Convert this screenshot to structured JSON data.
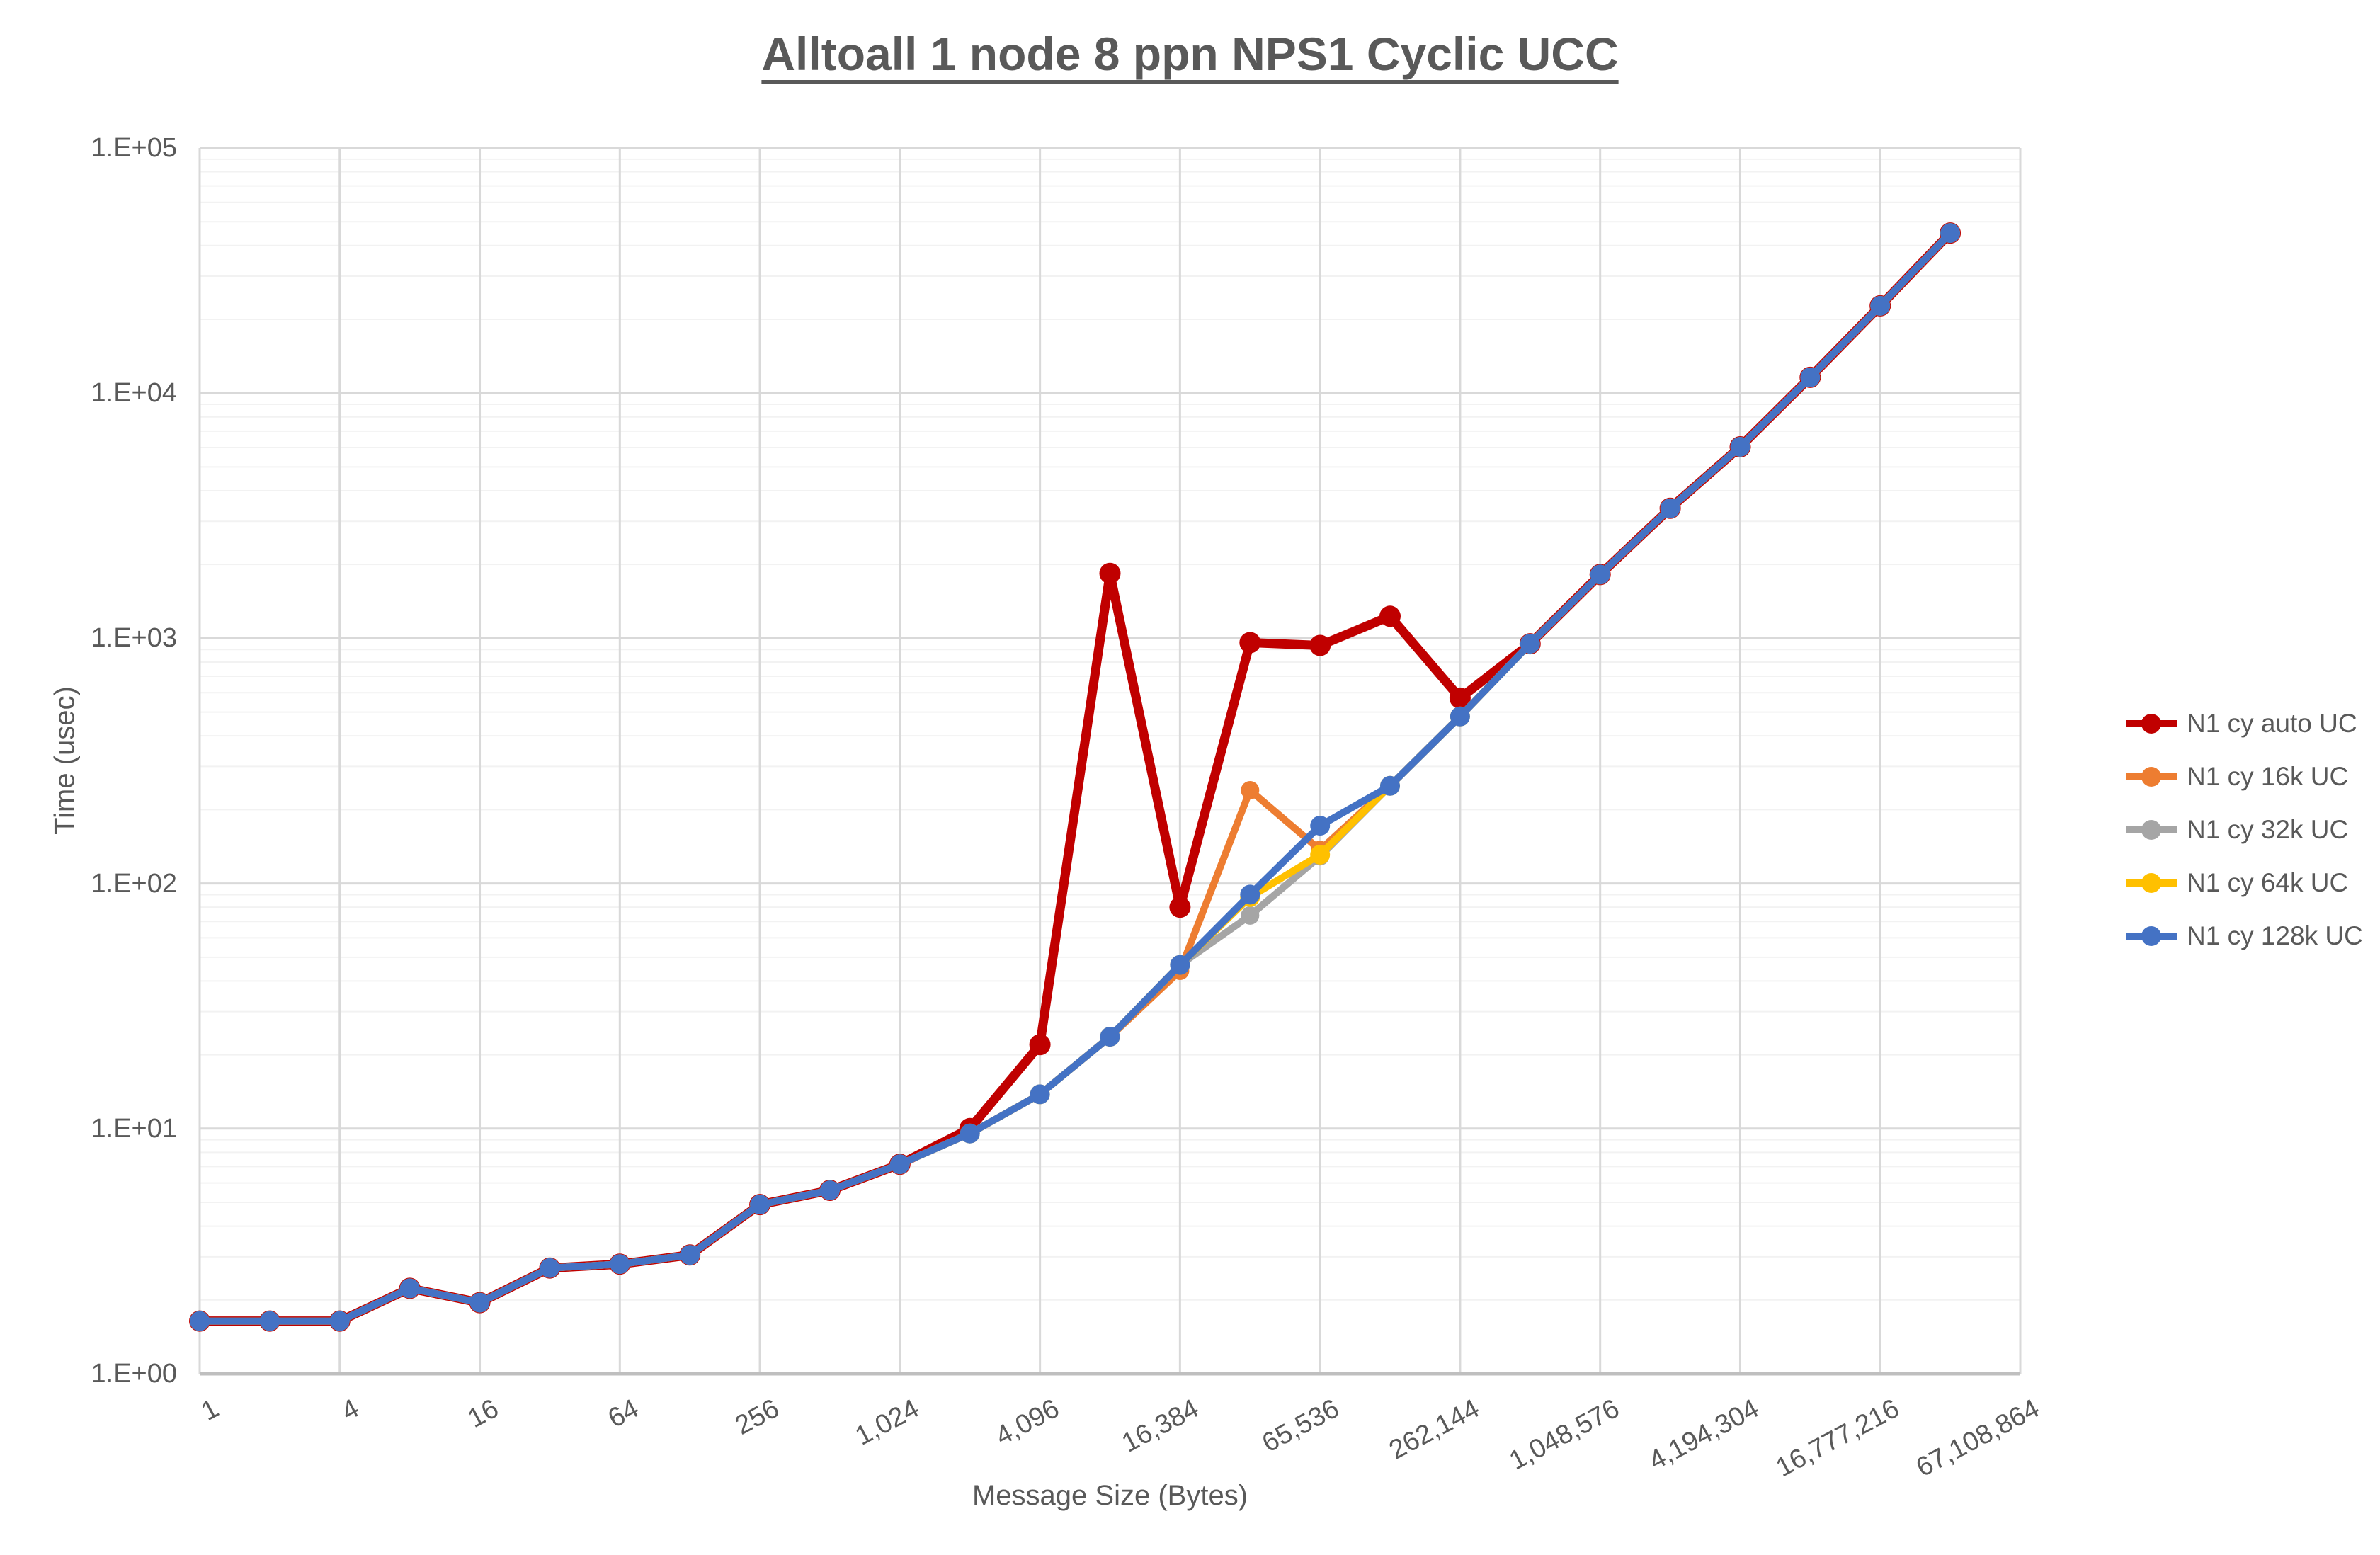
{
  "chart_data": {
    "type": "line",
    "title": "Alltoall 1 node 8 ppn NPS1 Cyclic UCC",
    "xlabel": "Message Size (Bytes)",
    "ylabel": "Time (usec)",
    "x_scale": "log2",
    "y_scale": "log10",
    "xlim": [
      1,
      67108864
    ],
    "ylim": [
      1,
      100000
    ],
    "grid": "on",
    "legend_position": "right",
    "y_tick_labels": [
      "1.E+00",
      "1.E+01",
      "1.E+02",
      "1.E+03",
      "1.E+04",
      "1.E+05"
    ],
    "x_tick_values": [
      1,
      4,
      16,
      64,
      256,
      1024,
      4096,
      16384,
      65536,
      262144,
      1048576,
      4194304,
      16777216,
      67108864
    ],
    "x_tick_labels": [
      "1",
      "4",
      "16",
      "64",
      "256",
      "1,024",
      "4,096",
      "16,384",
      "65,536",
      "262,144",
      "1,048,576",
      "4,194,304",
      "16,777,216",
      "67,108,864"
    ],
    "x": [
      1,
      2,
      4,
      8,
      16,
      32,
      64,
      128,
      256,
      512,
      1024,
      2048,
      4096,
      8192,
      16384,
      32768,
      65536,
      131072,
      262144,
      524288,
      1048576,
      2097152,
      4194304,
      8388608,
      16777216,
      33554432
    ],
    "series": [
      {
        "name": "N1 cy auto UC",
        "color": "#C00000",
        "values": [
          1.64,
          1.64,
          1.64,
          2.23,
          1.95,
          2.7,
          2.8,
          3.05,
          4.9,
          5.6,
          7.15,
          10.0,
          22,
          1840,
          80,
          960,
          935,
          1230,
          570,
          950,
          1820,
          3390,
          6040,
          11600,
          22700,
          45000
        ]
      },
      {
        "name": "N1 cy 16k UC",
        "color": "#ED7D31",
        "values": [
          1.64,
          1.64,
          1.64,
          2.23,
          1.95,
          2.7,
          2.8,
          3.05,
          4.9,
          5.6,
          7.15,
          9.55,
          13.8,
          23.7,
          44,
          240,
          137,
          250,
          480,
          950,
          1820,
          3390,
          6040,
          11600,
          22700,
          45000
        ]
      },
      {
        "name": "N1 cy 32k UC",
        "color": "#A5A5A5",
        "values": [
          1.64,
          1.64,
          1.64,
          2.23,
          1.95,
          2.7,
          2.8,
          3.05,
          4.9,
          5.6,
          7.15,
          9.55,
          13.8,
          23.7,
          46.5,
          74,
          129,
          250,
          480,
          950,
          1820,
          3390,
          6040,
          11600,
          22700,
          45000
        ]
      },
      {
        "name": "N1 cy 64k UC",
        "color": "#FFC000",
        "values": [
          1.64,
          1.64,
          1.64,
          2.23,
          1.95,
          2.7,
          2.8,
          3.05,
          4.9,
          5.6,
          7.15,
          9.55,
          13.8,
          23.7,
          46.5,
          88,
          131,
          250,
          480,
          950,
          1820,
          3390,
          6040,
          11600,
          22700,
          45000
        ]
      },
      {
        "name": "N1 cy 128k UC",
        "color": "#4472C4",
        "values": [
          1.64,
          1.64,
          1.64,
          2.23,
          1.95,
          2.7,
          2.8,
          3.05,
          4.9,
          5.6,
          7.15,
          9.55,
          13.8,
          23.7,
          46.5,
          90,
          172,
          250,
          480,
          950,
          1820,
          3390,
          6040,
          11600,
          22700,
          45000
        ]
      }
    ]
  },
  "colors": {
    "text": "#595959",
    "grid_major": "#D9D9D9",
    "grid_minor": "#F2F2F2",
    "axis_line": "#BFBFBF",
    "background": "#FFFFFF"
  }
}
